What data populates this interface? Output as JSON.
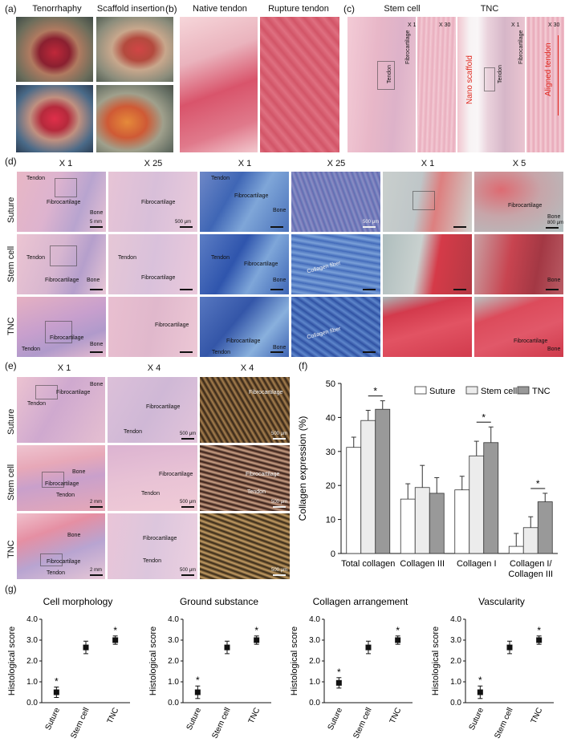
{
  "panels": {
    "a": {
      "label": "(a)",
      "titles": [
        "Tenorrhaphy",
        "Scaffold insertion"
      ]
    },
    "b": {
      "label": "(b)",
      "titles": [
        "Native tendon",
        "Rupture tendon"
      ]
    },
    "c": {
      "label": "(c)",
      "titles": [
        "Stem cell",
        "TNC"
      ],
      "mags": [
        "X 1",
        "X 30",
        "X 1",
        "X 30"
      ],
      "tags": {
        "fibrocartilage": "Fibrocartilage",
        "tendon": "Tendon",
        "nano": "Nano scaffold",
        "aligned": "Aligned tendon"
      }
    },
    "d": {
      "label": "(d)",
      "col_titles": [
        "X 1",
        "X 25",
        "X 1",
        "X 25",
        "X 1",
        "X 5"
      ],
      "rows": [
        "Suture",
        "Stem cell",
        "TNC"
      ],
      "tags": {
        "tendon": "Tendon",
        "fibrocartilage": "Fibrocartilage",
        "bone": "Bone",
        "collagen": "Collagen fiber"
      },
      "scales": {
        "s5mm": "5 mm",
        "s500": "500 μm",
        "s800": "800 μm"
      }
    },
    "e": {
      "label": "(e)",
      "col_titles": [
        "X 1",
        "X 4",
        "X 4"
      ],
      "rows": [
        "Suture",
        "Stem cell",
        "TNC"
      ],
      "tags": {
        "tendon": "Tendon",
        "fibrocartilage": "Fibrocartilage",
        "bone": "Bone"
      },
      "scales": {
        "s2mm": "2 mm",
        "s500": "500 μm"
      }
    },
    "f": {
      "label": "(f)"
    },
    "g": {
      "label": "(g)"
    }
  },
  "chart_data": [
    {
      "type": "bar",
      "panel": "f",
      "categories": [
        "Total collagen",
        "Collagen III",
        "Collagen I",
        "Collagen I/\nCollagen III"
      ],
      "series": [
        {
          "name": "Suture",
          "values": [
            31.2,
            16.0,
            18.7,
            2.1
          ],
          "errors": [
            3.0,
            4.5,
            4.0,
            3.8
          ],
          "color": "#ffffff"
        },
        {
          "name": "Stem cell",
          "values": [
            39.1,
            19.4,
            28.7,
            7.6
          ],
          "errors": [
            3.0,
            6.5,
            4.3,
            3.2
          ],
          "color": "#ececec"
        },
        {
          "name": "TNC",
          "values": [
            42.4,
            17.7,
            32.6,
            15.2
          ],
          "errors": [
            2.5,
            4.6,
            4.6,
            2.5
          ],
          "color": "#999999"
        }
      ],
      "ylabel": "Collagen expression (%)",
      "ylim": [
        0,
        50
      ],
      "yticks": [
        0,
        10,
        20,
        30,
        40,
        50
      ],
      "significance": [
        {
          "category": 0,
          "from": 1,
          "to": 2,
          "text": "*"
        },
        {
          "category": 2,
          "from": 1,
          "to": 2,
          "text": "*"
        },
        {
          "category": 3,
          "from": 1,
          "to": 2,
          "text": "*"
        }
      ]
    },
    {
      "type": "scatter",
      "panel": "g",
      "title": "Cell morphology",
      "categories": [
        "Suture",
        "Stem cell",
        "TNC"
      ],
      "values": [
        0.5,
        2.65,
        3.0
      ],
      "errors": [
        0.25,
        0.3,
        0.2
      ],
      "stars": [
        true,
        false,
        true
      ],
      "ylabel": "Histological score",
      "ylim": [
        0,
        4
      ],
      "yticks": [
        "0.0",
        "1.0",
        "2.0",
        "3.0",
        "4.0"
      ]
    },
    {
      "type": "scatter",
      "panel": "g",
      "title": "Ground substance",
      "categories": [
        "Suture",
        "Stem cell",
        "TNC"
      ],
      "values": [
        0.5,
        2.65,
        3.0
      ],
      "errors": [
        0.3,
        0.3,
        0.2
      ],
      "stars": [
        true,
        false,
        true
      ],
      "ylabel": "Histological score",
      "ylim": [
        0,
        4
      ],
      "yticks": [
        "0.0",
        "1.0",
        "2.0",
        "3.0",
        "4.0"
      ]
    },
    {
      "type": "scatter",
      "panel": "g",
      "title": "Collagen arrangement",
      "categories": [
        "Suture",
        "Stem cell",
        "TNC"
      ],
      "values": [
        0.95,
        2.65,
        3.0
      ],
      "errors": [
        0.25,
        0.3,
        0.2
      ],
      "stars": [
        true,
        false,
        true
      ],
      "ylabel": "Histological score",
      "ylim": [
        0,
        4
      ],
      "yticks": [
        "0.0",
        "1.0",
        "2.0",
        "3.0",
        "4.0"
      ]
    },
    {
      "type": "scatter",
      "panel": "g",
      "title": "Vascularity",
      "categories": [
        "Suture",
        "Stem cell",
        "TNC"
      ],
      "values": [
        0.5,
        2.65,
        3.0
      ],
      "errors": [
        0.3,
        0.3,
        0.2
      ],
      "stars": [
        true,
        false,
        true
      ],
      "ylabel": "Histological score",
      "ylim": [
        0,
        4
      ],
      "yticks": [
        "0.0",
        "1.0",
        "2.0",
        "3.0",
        "4.0"
      ]
    }
  ]
}
